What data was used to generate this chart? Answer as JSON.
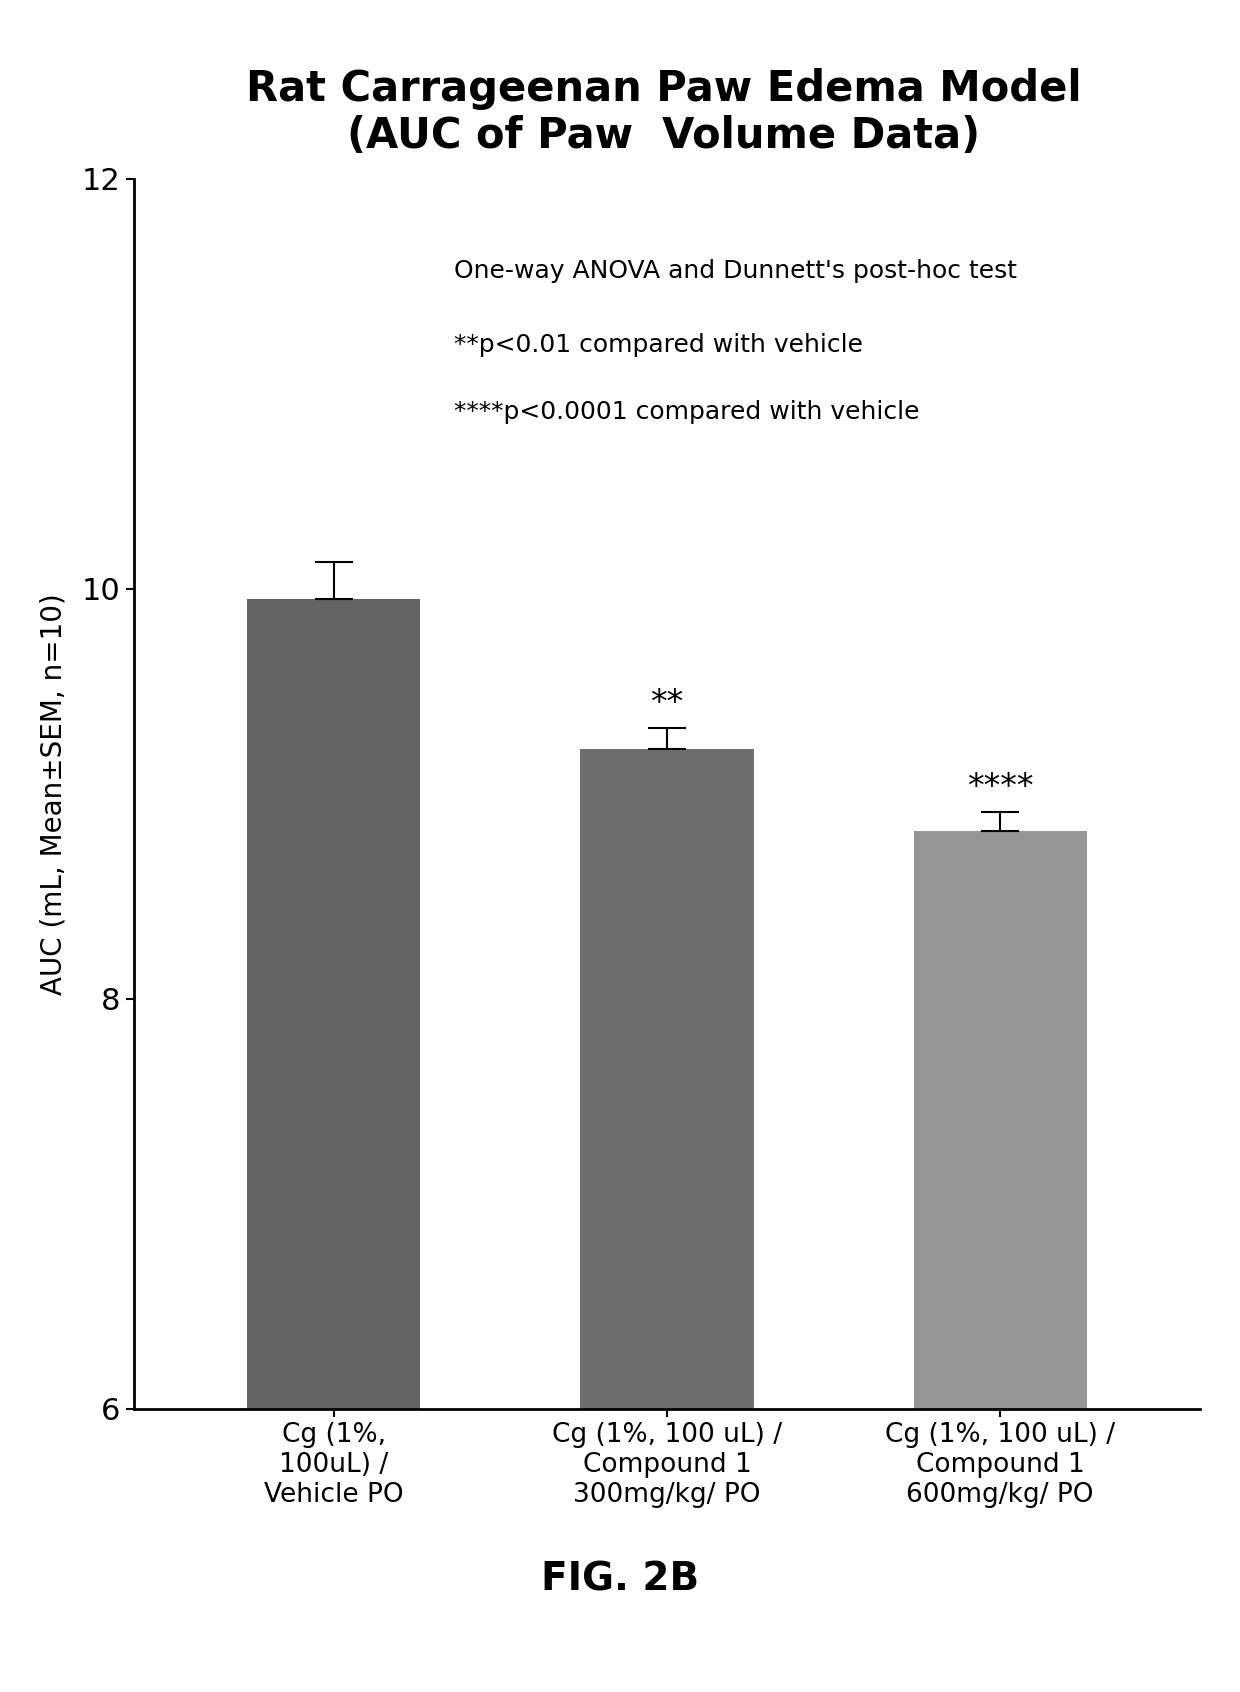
{
  "title_line1": "Rat Carrageenan Paw Edema Model",
  "title_line2": "(AUC of Paw  Volume Data)",
  "annotation_line1": "One-way ANOVA and Dunnett's post-hoc test",
  "annotation_line2": "**p<0.01 compared with vehicle",
  "annotation_line3": "****p<0.0001 compared with vehicle",
  "ylabel": "AUC (mL, Mean±SEM, n=10)",
  "categories": [
    "Cg (1%,\n100uL) /\nVehicle PO",
    "Cg (1%, 100 uL) /\nCompound 1\n300mg/kg/ PO",
    "Cg (1%, 100 uL) /\nCompound 1\n600mg/kg/ PO"
  ],
  "values": [
    9.95,
    9.22,
    8.82
  ],
  "errors": [
    0.18,
    0.1,
    0.09
  ],
  "bar_colors": [
    "#646464",
    "#6e6e6e",
    "#969696"
  ],
  "significance": [
    "",
    "**",
    "****"
  ],
  "ymin": 6,
  "ymax": 12,
  "yticks": [
    6,
    8,
    10,
    12
  ],
  "fig_caption": "FIG. 2B",
  "background_color": "#ffffff"
}
